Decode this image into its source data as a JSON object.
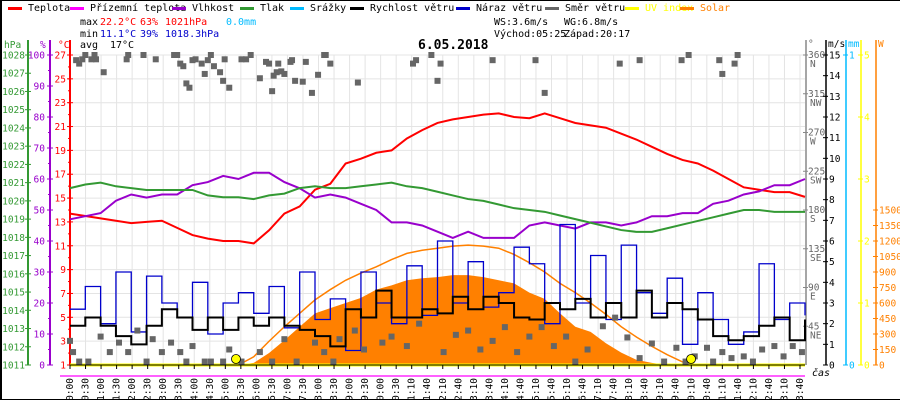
{
  "legend": [
    {
      "label": "Teplota",
      "color": "#ff0000"
    },
    {
      "label": "Přízemní teplota",
      "color": "#ff00ff"
    },
    {
      "label": "Vlhkost",
      "color": "#9900cc"
    },
    {
      "label": "Tlak",
      "color": "#339933"
    },
    {
      "label": "Srážky",
      "color": "#00bbff"
    },
    {
      "label": "Rychlost větru",
      "color": "#000000"
    },
    {
      "label": "Náraz větru",
      "color": "#0000cc"
    },
    {
      "label": "Směr větru",
      "color": "#666666"
    },
    {
      "label": "UV index",
      "color": "#ffff00"
    },
    {
      "label": "Solar",
      "color": "#ff8000"
    }
  ],
  "stats": {
    "max_label": "max",
    "max_temp": "22.2°C",
    "max_hum": "63%",
    "max_press": "1021hPa",
    "max_rain": "0.0mm",
    "min_label": "min",
    "min_temp": "11.1°C",
    "min_hum": "39%",
    "min_press": "1018.3hPa",
    "avg_label": "avg",
    "avg_temp": "17°C",
    "ws": "WS:3.6m/s",
    "wg": "WG:6.8m/s",
    "sunrise": "Východ:05:25",
    "sunset": "Západ:20:17"
  },
  "chart_data": {
    "type": "line",
    "title": "6.05.2018",
    "xlabel": "čas",
    "x_tick_labels": [
      "00:00",
      "00:30",
      "01:00",
      "01:30",
      "02:00",
      "02:30",
      "03:00",
      "03:30",
      "04:00",
      "04:30",
      "05:00",
      "05:30",
      "06:00",
      "06:30",
      "07:00",
      "07:30",
      "08:00",
      "08:30",
      "09:00",
      "09:30",
      "10:00",
      "10:30",
      "11:10",
      "11:40",
      "12:10",
      "12:40",
      "13:10",
      "13:40",
      "14:10",
      "14:40",
      "15:10",
      "15:40",
      "16:10",
      "16:40",
      "17:10",
      "17:40",
      "18:10",
      "18:40",
      "19:10",
      "19:40",
      "20:10",
      "20:40",
      "21:10",
      "21:40",
      "22:10",
      "22:40",
      "23:10",
      "23:40"
    ],
    "x_hours_every_30min_from_0_to_24": true,
    "grid": true,
    "axes": {
      "pressure": {
        "unit": "hPa",
        "range": [
          1011,
          1028
        ],
        "ticks": [
          1011,
          1012,
          1013,
          1014,
          1015,
          1016,
          1017,
          1018,
          1019,
          1020,
          1021,
          1022,
          1023,
          1024,
          1025,
          1026,
          1027,
          1028
        ],
        "color": "#339933"
      },
      "humidity": {
        "unit": "%",
        "range": [
          0,
          100
        ],
        "ticks": [
          0,
          10,
          20,
          30,
          40,
          50,
          60,
          70,
          80,
          90,
          100
        ],
        "color": "#9900cc"
      },
      "temperature": {
        "unit": "°C",
        "range": [
          1,
          27
        ],
        "ticks": [
          1,
          3,
          5,
          7,
          9,
          11,
          13,
          15,
          17,
          19,
          21,
          23,
          25,
          27
        ],
        "color": "#ff0000"
      },
      "direction": {
        "unit": "°",
        "range": [
          0,
          360
        ],
        "ticks": [
          {
            "v": 45,
            "l": "45",
            "d": "NE"
          },
          {
            "v": 90,
            "l": "90",
            "d": "E"
          },
          {
            "v": 135,
            "l": "135",
            "d": "SE"
          },
          {
            "v": 180,
            "l": "180",
            "d": "S"
          },
          {
            "v": 225,
            "l": "225",
            "d": "SW"
          },
          {
            "v": 270,
            "l": "270",
            "d": "W"
          },
          {
            "v": 315,
            "l": "315",
            "d": "NW"
          },
          {
            "v": 360,
            "l": "360",
            "d": "N"
          }
        ],
        "color": "#666666"
      },
      "wind": {
        "unit": "m/s",
        "range": [
          0,
          15
        ],
        "ticks": [
          0,
          1,
          2,
          3,
          4,
          5,
          6,
          7,
          8,
          9,
          10,
          11,
          12,
          13,
          14,
          15
        ],
        "color": "#000000"
      },
      "rain": {
        "unit": "mm",
        "range": [
          0,
          1
        ],
        "ticks": [
          0,
          1
        ],
        "color": "#00bbff"
      },
      "uv": {
        "unit": "",
        "range": [
          0,
          5
        ],
        "ticks": [
          0,
          1,
          2,
          3,
          4,
          5
        ],
        "color": "#ffff00"
      },
      "solar": {
        "unit": "W",
        "range": [
          0,
          3000
        ],
        "ticks": [
          0,
          150,
          300,
          450,
          600,
          750,
          900,
          1050,
          1200,
          1350,
          1500
        ],
        "color": "#ff8000"
      }
    },
    "series": [
      {
        "name": "Teplota",
        "axis": "temperature",
        "values": [
          13.7,
          13.5,
          13.3,
          13.1,
          12.9,
          13.0,
          13.1,
          12.5,
          11.9,
          11.6,
          11.4,
          11.4,
          11.2,
          12.3,
          13.7,
          14.3,
          15.7,
          16.2,
          17.9,
          18.3,
          18.8,
          19.0,
          20.0,
          20.7,
          21.3,
          21.6,
          21.8,
          22.0,
          22.1,
          21.8,
          21.7,
          22.1,
          21.7,
          21.3,
          21.1,
          20.9,
          20.4,
          19.9,
          19.3,
          18.7,
          18.2,
          17.9,
          17.3,
          16.6,
          15.9,
          15.7,
          15.5,
          15.5,
          15.1
        ]
      },
      {
        "name": "Vlhkost",
        "axis": "humidity",
        "values": [
          47,
          48,
          49,
          53,
          55,
          54,
          55,
          55,
          58,
          59,
          61,
          60,
          62,
          62,
          59,
          57,
          54,
          55,
          54,
          52,
          50,
          46,
          46,
          45,
          43,
          41,
          43,
          41,
          41,
          41,
          45,
          46,
          45,
          44,
          46,
          46,
          45,
          46,
          48,
          48,
          49,
          49,
          52,
          53,
          55,
          56,
          58,
          58,
          60
        ]
      },
      {
        "name": "Tlak",
        "axis": "pressure",
        "values": [
          1020.7,
          1020.9,
          1021.0,
          1020.8,
          1020.7,
          1020.6,
          1020.6,
          1020.6,
          1020.6,
          1020.3,
          1020.2,
          1020.2,
          1020.1,
          1020.3,
          1020.4,
          1020.7,
          1020.8,
          1020.7,
          1020.7,
          1020.8,
          1020.9,
          1021.0,
          1020.8,
          1020.7,
          1020.5,
          1020.3,
          1020.1,
          1020.0,
          1019.8,
          1019.6,
          1019.5,
          1019.4,
          1019.2,
          1019.0,
          1018.8,
          1018.6,
          1018.4,
          1018.3,
          1018.3,
          1018.5,
          1018.7,
          1018.9,
          1019.1,
          1019.3,
          1019.5,
          1019.5,
          1019.4,
          1019.4,
          1019.4
        ]
      },
      {
        "name": "Rychlost větru",
        "axis": "wind",
        "values": [
          1.9,
          2.3,
          1.9,
          1.4,
          1.0,
          1.9,
          2.7,
          2.3,
          1.7,
          2.3,
          1.7,
          2.3,
          1.9,
          2.3,
          1.9,
          1.7,
          1.4,
          0.9,
          2.7,
          2.3,
          3.6,
          2.3,
          2.3,
          2.7,
          2.5,
          3.3,
          2.7,
          3.3,
          3.0,
          2.3,
          2.2,
          3.0,
          2.7,
          3.2,
          2.3,
          3.0,
          2.3,
          3.6,
          2.3,
          3.0,
          2.7,
          2.2,
          1.4,
          1.2,
          1.4,
          1.9,
          2.3,
          1.2,
          2.2
        ]
      },
      {
        "name": "Náraz větru",
        "axis": "wind",
        "values": [
          2.7,
          3.8,
          2.0,
          4.5,
          1.6,
          4.3,
          3.0,
          2.3,
          4.0,
          1.5,
          3.0,
          3.5,
          2.5,
          3.8,
          1.8,
          4.5,
          2.2,
          3.2,
          0.7,
          4.5,
          3.0,
          2.0,
          4.8,
          2.4,
          6.0,
          3.0,
          5.0,
          2.8,
          3.5,
          5.7,
          4.9,
          2.0,
          6.8,
          3.0,
          5.3,
          2.2,
          5.8,
          3.5,
          2.5,
          4.2,
          1.0,
          3.5,
          2.2,
          1.0,
          1.6,
          4.9,
          2.2,
          3.0,
          2.4
        ]
      },
      {
        "name": "Solar",
        "axis": "solar",
        "fill": true,
        "values": [
          0,
          0,
          0,
          0,
          0,
          0,
          0,
          0,
          0,
          0,
          0,
          0,
          20,
          116,
          240,
          370,
          500,
          550,
          600,
          650,
          730,
          770,
          820,
          840,
          850,
          870,
          870,
          850,
          820,
          790,
          700,
          640,
          500,
          370,
          320,
          210,
          120,
          50,
          20,
          0,
          0,
          0,
          0,
          0,
          0,
          0,
          0,
          0,
          0
        ]
      },
      {
        "name": "Solar max",
        "axis": "solar",
        "values": [
          0,
          0,
          0,
          0,
          0,
          0,
          0,
          0,
          0,
          0,
          0,
          0,
          80,
          230,
          370,
          500,
          630,
          730,
          820,
          890,
          950,
          1020,
          1080,
          1110,
          1130,
          1150,
          1160,
          1150,
          1130,
          1070,
          990,
          900,
          790,
          700,
          600,
          490,
          370,
          270,
          180,
          100,
          30,
          0,
          0,
          0,
          0,
          0,
          0,
          0,
          0
        ]
      },
      {
        "name": "UV index",
        "axis": "uv",
        "values": [
          0,
          0,
          0,
          0,
          0,
          0,
          0,
          0,
          0,
          0,
          0,
          0,
          0,
          0,
          0,
          0,
          0,
          0,
          0,
          0,
          0,
          0,
          0,
          0,
          0,
          0,
          0,
          0,
          0,
          0,
          0,
          0,
          0,
          0,
          0,
          0,
          0,
          0,
          0,
          0,
          0,
          0,
          0,
          0,
          0,
          0,
          0,
          0,
          0
        ]
      }
    ],
    "uv_markers_hours": [
      5.42,
      20.28
    ],
    "direction_points": [
      [
        0.2,
        354
      ],
      [
        0.3,
        350
      ],
      [
        0.4,
        355
      ],
      [
        0.5,
        360
      ],
      [
        0.7,
        355
      ],
      [
        0.8,
        360
      ],
      [
        0.85,
        355
      ],
      [
        1.1,
        340
      ],
      [
        1.85,
        355
      ],
      [
        1.9,
        360
      ],
      [
        2.4,
        360
      ],
      [
        2.8,
        355
      ],
      [
        3.4,
        360
      ],
      [
        3.5,
        360
      ],
      [
        3.6,
        350
      ],
      [
        3.7,
        347
      ],
      [
        3.8,
        327
      ],
      [
        3.9,
        322
      ],
      [
        4.0,
        354
      ],
      [
        4.1,
        355
      ],
      [
        4.3,
        350
      ],
      [
        4.4,
        338
      ],
      [
        4.5,
        354
      ],
      [
        4.6,
        360
      ],
      [
        4.7,
        347
      ],
      [
        4.9,
        340
      ],
      [
        5.0,
        330
      ],
      [
        5.05,
        355
      ],
      [
        5.2,
        322
      ],
      [
        5.6,
        355
      ],
      [
        5.75,
        355
      ],
      [
        5.9,
        360
      ],
      [
        6.2,
        333
      ],
      [
        6.4,
        352
      ],
      [
        6.5,
        350
      ],
      [
        6.6,
        318
      ],
      [
        6.65,
        336
      ],
      [
        6.75,
        340
      ],
      [
        6.8,
        350
      ],
      [
        6.9,
        341
      ],
      [
        7.0,
        338
      ],
      [
        7.2,
        352
      ],
      [
        7.25,
        354
      ],
      [
        7.35,
        330
      ],
      [
        7.6,
        329
      ],
      [
        7.7,
        352
      ],
      [
        7.9,
        316
      ],
      [
        8.1,
        337
      ],
      [
        8.3,
        360
      ],
      [
        8.35,
        360
      ],
      [
        8.5,
        350
      ],
      [
        9.4,
        328
      ],
      [
        11.2,
        350
      ],
      [
        11.3,
        354
      ],
      [
        11.8,
        360
      ],
      [
        12.0,
        330
      ],
      [
        12.1,
        350
      ],
      [
        13.8,
        354
      ],
      [
        15.2,
        354
      ],
      [
        15.5,
        316
      ],
      [
        17.95,
        350
      ],
      [
        18.6,
        354
      ],
      [
        19.97,
        354
      ],
      [
        20.2,
        360
      ],
      [
        21.2,
        354
      ],
      [
        21.3,
        338
      ],
      [
        21.7,
        350
      ],
      [
        21.8,
        360
      ],
      [
        0.0,
        28
      ],
      [
        0.1,
        15
      ],
      [
        0.3,
        4
      ],
      [
        0.6,
        4
      ],
      [
        1.0,
        33
      ],
      [
        1.3,
        15
      ],
      [
        1.6,
        26
      ],
      [
        1.9,
        15
      ],
      [
        2.2,
        40
      ],
      [
        2.5,
        4
      ],
      [
        2.7,
        30
      ],
      [
        3.0,
        15
      ],
      [
        3.3,
        26
      ],
      [
        3.6,
        15
      ],
      [
        3.8,
        4
      ],
      [
        4.0,
        22
      ],
      [
        4.4,
        4
      ],
      [
        4.6,
        4
      ],
      [
        5.0,
        4
      ],
      [
        5.2,
        18
      ],
      [
        5.6,
        4
      ],
      [
        6.2,
        15
      ],
      [
        6.6,
        4
      ],
      [
        7.0,
        30
      ],
      [
        7.4,
        4
      ],
      [
        8.0,
        26
      ],
      [
        8.3,
        15
      ],
      [
        8.6,
        4
      ],
      [
        8.8,
        30
      ],
      [
        9.3,
        40
      ],
      [
        9.6,
        18
      ],
      [
        10.2,
        26
      ],
      [
        10.5,
        33
      ],
      [
        11.0,
        22
      ],
      [
        11.4,
        48
      ],
      [
        12.2,
        15
      ],
      [
        12.6,
        35
      ],
      [
        13.0,
        40
      ],
      [
        13.4,
        18
      ],
      [
        13.8,
        28
      ],
      [
        14.2,
        44
      ],
      [
        14.6,
        15
      ],
      [
        15.0,
        33
      ],
      [
        15.4,
        44
      ],
      [
        15.8,
        22
      ],
      [
        16.2,
        33
      ],
      [
        16.5,
        4
      ],
      [
        16.9,
        18
      ],
      [
        17.4,
        45
      ],
      [
        17.8,
        55
      ],
      [
        18.2,
        32
      ],
      [
        18.6,
        8
      ],
      [
        19.0,
        25
      ],
      [
        19.4,
        4
      ],
      [
        19.8,
        20
      ],
      [
        20.1,
        4
      ],
      [
        20.4,
        10
      ],
      [
        20.8,
        20
      ],
      [
        21.0,
        4
      ],
      [
        21.3,
        15
      ],
      [
        21.6,
        8
      ],
      [
        22.0,
        10
      ],
      [
        22.3,
        4
      ],
      [
        22.6,
        18
      ],
      [
        23.0,
        22
      ],
      [
        23.3,
        10
      ],
      [
        23.6,
        22
      ],
      [
        23.9,
        15
      ]
    ]
  }
}
